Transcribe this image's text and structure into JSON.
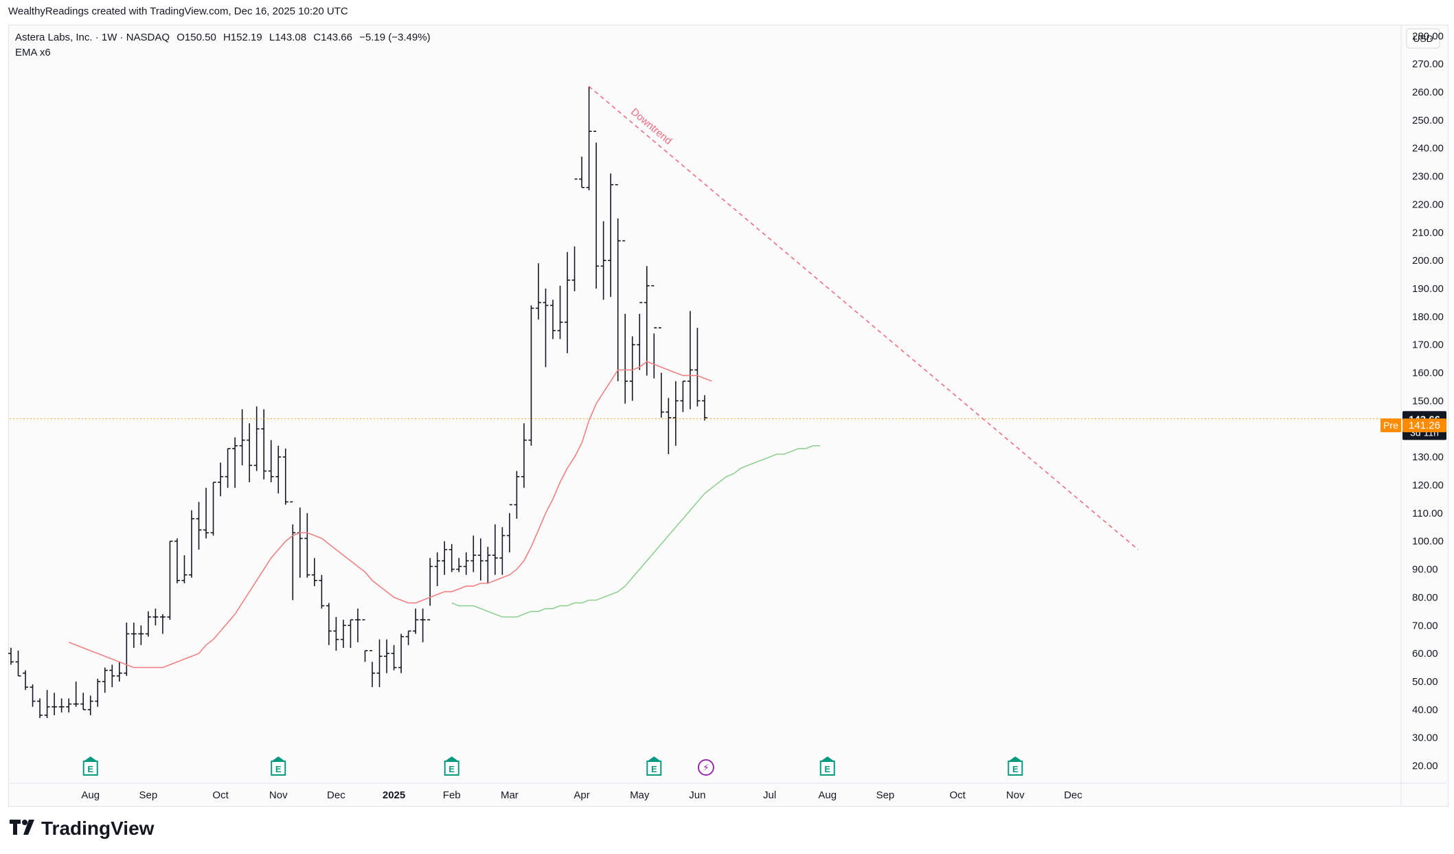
{
  "header": {
    "credit": "WealthyReadings created with TradingView.com, Dec 16, 2025 10:20 UTC"
  },
  "legend": {
    "symbol": "Astera Labs, Inc. · 1W · NASDAQ",
    "open": "O150.50",
    "high": "H152.19",
    "low": "L143.08",
    "close": "C143.66",
    "change": "−5.19 (−3.49%)",
    "indicator": "EMA x6"
  },
  "footer": {
    "brand": "TradingView"
  },
  "colors": {
    "bar": "#131722",
    "ema_fast": "#f08080",
    "ema_slow": "#90d090",
    "downtrend": "#f06b80",
    "last_price_line": "#f5a623",
    "last_price_badge": "#131722",
    "pre_badge": "#ff8c00",
    "earnings": "#089981",
    "flash": "#9c27b0"
  },
  "icons": {
    "earnings": "E",
    "flash": "⚡"
  },
  "chart_data": {
    "type": "ohlc",
    "interval": "1W",
    "currency_label": "USD",
    "ylim": [
      15,
      283
    ],
    "y_ticks": [
      20,
      30,
      40,
      50,
      60,
      70,
      80,
      90,
      100,
      110,
      120,
      130,
      140,
      150,
      160,
      170,
      180,
      190,
      200,
      210,
      220,
      230,
      240,
      250,
      260,
      270,
      280
    ],
    "x_labels": [
      "Aug",
      "Sep",
      "Oct",
      "Nov",
      "Dec",
      "2025",
      "Feb",
      "Mar",
      "Apr",
      "May",
      "Jun",
      "Jul",
      "Aug",
      "Sep",
      "Oct",
      "Nov",
      "Dec"
    ],
    "x_label_bars": [
      11,
      19,
      29,
      37,
      45,
      53,
      61,
      69,
      79,
      87,
      95,
      105,
      113,
      121,
      131,
      139,
      147
    ],
    "bars": [
      [
        60,
        62,
        56,
        57
      ],
      [
        57,
        61,
        52,
        52
      ],
      [
        53,
        54,
        47,
        48
      ],
      [
        48,
        49,
        41,
        43
      ],
      [
        43,
        44,
        37,
        38
      ],
      [
        38,
        47,
        37,
        41
      ],
      [
        41,
        46,
        38,
        41
      ],
      [
        41,
        44,
        39,
        41
      ],
      [
        41,
        44,
        39,
        42
      ],
      [
        42,
        50,
        41,
        42
      ],
      [
        42,
        46,
        40,
        40
      ],
      [
        40,
        45,
        38,
        43
      ],
      [
        43,
        51,
        41,
        50
      ],
      [
        50,
        55,
        46,
        54
      ],
      [
        54,
        56,
        48,
        52
      ],
      [
        52,
        57,
        50,
        53
      ],
      [
        53,
        71,
        52,
        67
      ],
      [
        67,
        71,
        62,
        67
      ],
      [
        67,
        70,
        63,
        67
      ],
      [
        67,
        75,
        66,
        73
      ],
      [
        73,
        76,
        70,
        73
      ],
      [
        73,
        74,
        67,
        73
      ],
      [
        73,
        100,
        72,
        100
      ],
      [
        100,
        101,
        85,
        86
      ],
      [
        86,
        95,
        85,
        88
      ],
      [
        88,
        111,
        87,
        108
      ],
      [
        108,
        114,
        97,
        104
      ],
      [
        104,
        119,
        101,
        103
      ],
      [
        103,
        121,
        102,
        121
      ],
      [
        121,
        128,
        116,
        123
      ],
      [
        123,
        133,
        119,
        133
      ],
      [
        133,
        137,
        119,
        134
      ],
      [
        134,
        147,
        127,
        136
      ],
      [
        136,
        142,
        121,
        127
      ],
      [
        127,
        148,
        125,
        140
      ],
      [
        140,
        147,
        122,
        125
      ],
      [
        125,
        136,
        121,
        123
      ],
      [
        123,
        134,
        117,
        130
      ],
      [
        130,
        133,
        113,
        114
      ],
      [
        114,
        106,
        79,
        103
      ],
      [
        103,
        112,
        87,
        101
      ],
      [
        101,
        110,
        87,
        88
      ],
      [
        88,
        94,
        84,
        86
      ],
      [
        86,
        88,
        76,
        77
      ],
      [
        77,
        78,
        63,
        68
      ],
      [
        68,
        73,
        61,
        65
      ],
      [
        65,
        72,
        62,
        70
      ],
      [
        70,
        72,
        62,
        72
      ],
      [
        72,
        76,
        64,
        72
      ],
      [
        72,
        61,
        57,
        61
      ],
      [
        61,
        57,
        48,
        53
      ],
      [
        53,
        65,
        48,
        59
      ],
      [
        59,
        65,
        53,
        60
      ],
      [
        60,
        63,
        54,
        55
      ],
      [
        55,
        67,
        53,
        66
      ],
      [
        66,
        68,
        63,
        68
      ],
      [
        68,
        76,
        67,
        72
      ],
      [
        72,
        76,
        64,
        72
      ],
      [
        72,
        94,
        77,
        91
      ],
      [
        91,
        96,
        84,
        93
      ],
      [
        93,
        100,
        88,
        97
      ],
      [
        97,
        99,
        89,
        90
      ],
      [
        90,
        94,
        89,
        91
      ],
      [
        91,
        96,
        88,
        93
      ],
      [
        93,
        102,
        89,
        95
      ],
      [
        95,
        101,
        86,
        93
      ],
      [
        93,
        98,
        85,
        95
      ],
      [
        95,
        106,
        88,
        94
      ],
      [
        94,
        105,
        88,
        102
      ],
      [
        102,
        110,
        96,
        113
      ],
      [
        113,
        125,
        108,
        123
      ],
      [
        123,
        142,
        119,
        136
      ],
      [
        136,
        184,
        134,
        183
      ],
      [
        183,
        199,
        179,
        185
      ],
      [
        185,
        190,
        162,
        184
      ],
      [
        184,
        186,
        172,
        175
      ],
      [
        175,
        191,
        172,
        178
      ],
      [
        178,
        203,
        167,
        193
      ],
      [
        193,
        205,
        189,
        229
      ],
      [
        229,
        237,
        226,
        226
      ],
      [
        226,
        262,
        225,
        246
      ],
      [
        246,
        242,
        190,
        198
      ],
      [
        198,
        214,
        186,
        200
      ],
      [
        200,
        231,
        187,
        227
      ],
      [
        227,
        215,
        157,
        207
      ],
      [
        207,
        181,
        149,
        157
      ],
      [
        157,
        173,
        150,
        170
      ],
      [
        170,
        181,
        161,
        185
      ],
      [
        185,
        198,
        159,
        191
      ],
      [
        191,
        174,
        158,
        176
      ],
      [
        176,
        160,
        144,
        146
      ],
      [
        146,
        151,
        131,
        144
      ],
      [
        144,
        157,
        134,
        150
      ],
      [
        150,
        157,
        146,
        157
      ],
      [
        157,
        182,
        147,
        161
      ],
      [
        161,
        176,
        148,
        150
      ],
      [
        150,
        152,
        143,
        144
      ]
    ],
    "series": [
      {
        "name": "EMA",
        "start_bar": 8,
        "values": [
          64,
          63,
          62,
          61,
          60,
          59,
          58,
          57,
          56,
          55,
          55,
          55,
          55,
          55,
          56,
          57,
          58,
          59,
          60,
          63,
          65,
          68,
          71,
          74,
          78,
          82,
          86,
          90,
          94,
          97,
          100,
          102,
          103,
          103,
          102,
          101,
          99,
          97,
          95,
          93,
          91,
          89,
          86,
          84,
          82,
          80,
          79,
          78,
          78,
          79,
          80,
          81,
          82,
          82,
          83,
          84,
          84,
          85,
          85,
          86,
          87,
          88,
          90,
          93,
          98,
          104,
          110,
          115,
          121,
          126,
          130,
          135,
          143,
          149,
          153,
          157,
          161,
          161,
          161,
          162,
          164,
          163,
          162,
          161,
          160,
          159,
          159,
          159,
          158,
          157
        ]
      },
      {
        "name": "EMA",
        "start_bar": 61,
        "values": [
          78,
          77,
          77,
          77,
          76,
          75,
          74,
          73,
          73,
          73,
          74,
          75,
          75,
          76,
          76,
          77,
          77,
          78,
          78,
          79,
          79,
          80,
          81,
          82,
          84,
          87,
          90,
          93,
          96,
          99,
          102,
          105,
          108,
          111,
          114,
          117,
          119,
          121,
          123,
          124,
          126,
          127,
          128,
          129,
          130,
          131,
          131,
          132,
          133,
          133,
          134,
          134
        ]
      }
    ],
    "trendline": {
      "label": "Downtrend",
      "from": [
        80,
        262
      ],
      "to": [
        156,
        97
      ]
    },
    "last_price": {
      "value": "143.66",
      "countdown": "3d 11h"
    },
    "pre_market": {
      "label": "Pre",
      "value": "141.26"
    },
    "earnings_markers_at_bars": [
      11,
      37,
      61,
      89,
      113,
      139
    ],
    "grid": false
  }
}
